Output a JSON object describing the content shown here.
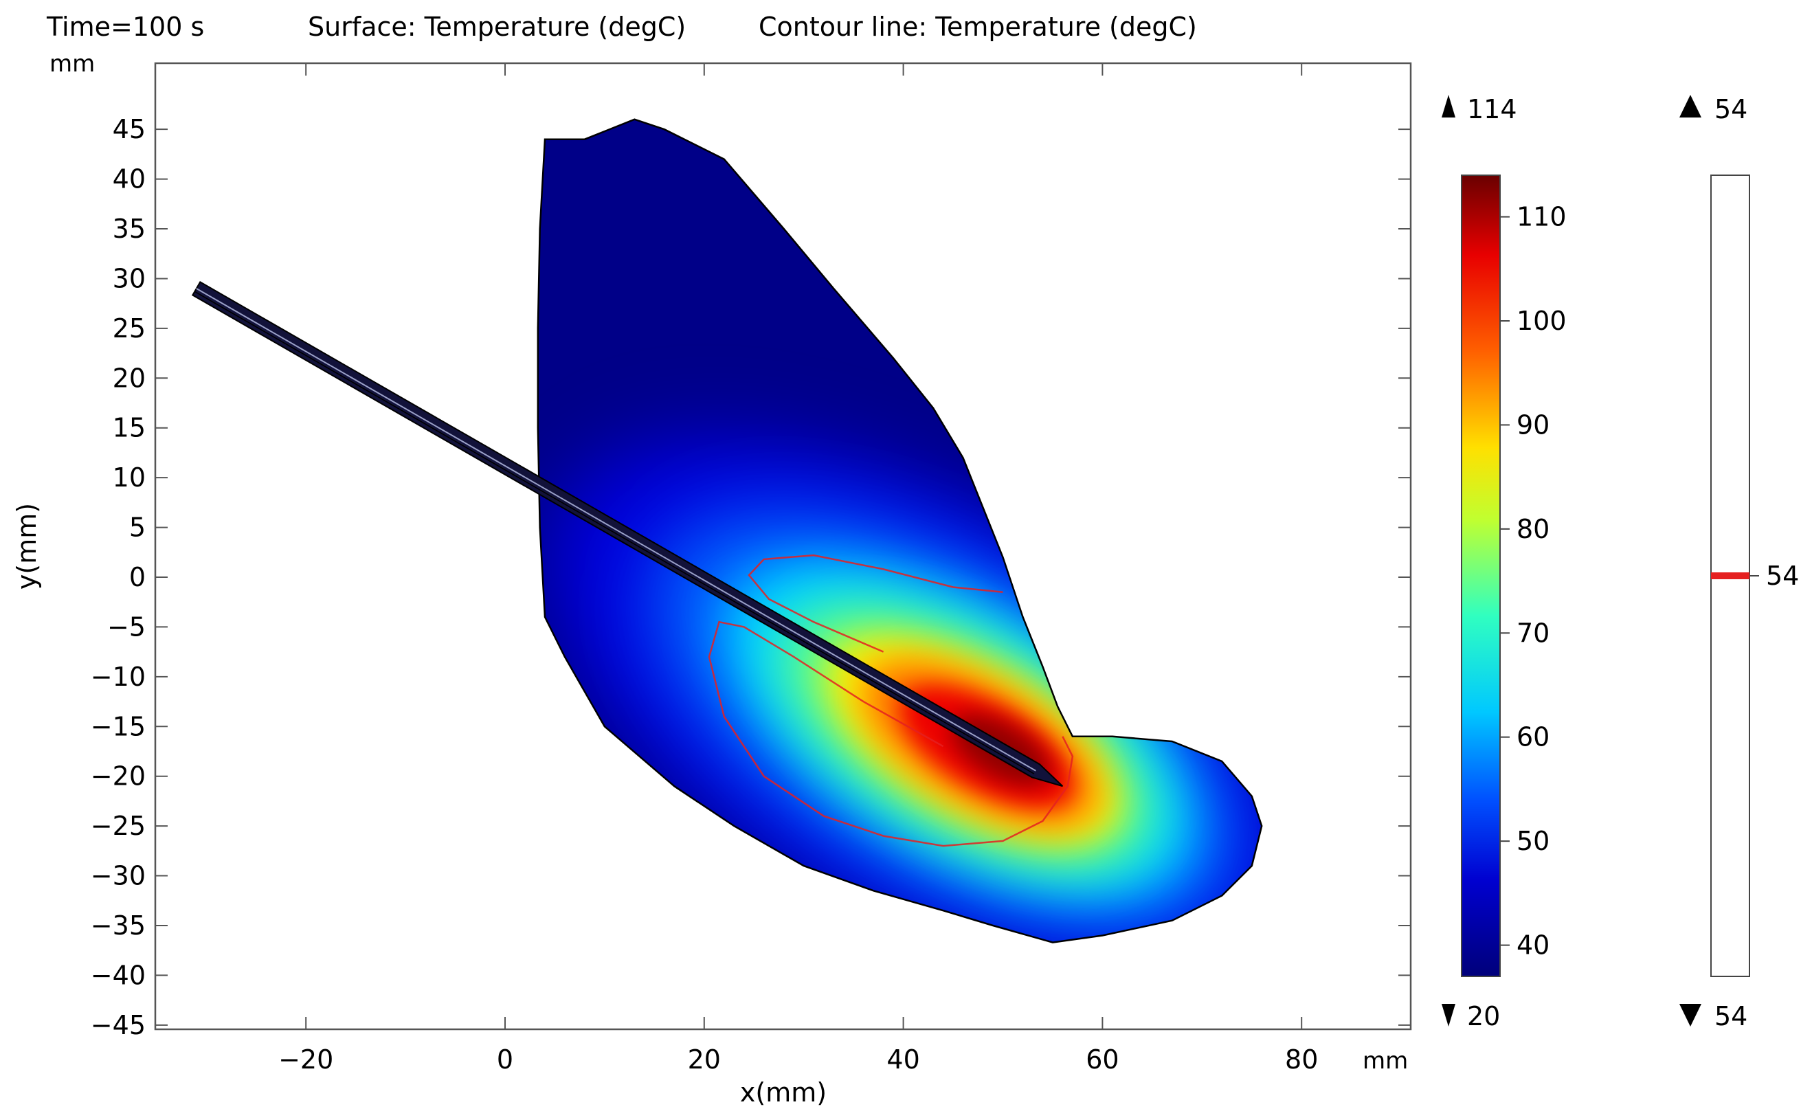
{
  "header": {
    "time": "Time=100 s",
    "surface": "Surface: Temperature (degC)",
    "contour": "Contour line: Temperature (degC)"
  },
  "chart_data": {
    "type": "heatmap",
    "title": "",
    "xlabel": "x(mm)",
    "ylabel": "y(mm)",
    "x_unit": "mm",
    "y_unit": "mm",
    "xlim": [
      -35,
      90
    ],
    "ylim": [
      -45,
      52
    ],
    "x_ticks": [
      -20,
      0,
      20,
      40,
      60,
      80
    ],
    "y_ticks": [
      45,
      40,
      35,
      30,
      25,
      20,
      15,
      10,
      5,
      0,
      -5,
      -10,
      -15,
      -20,
      -25,
      -30,
      -35,
      -40,
      -45
    ],
    "grid": false,
    "colormap": "rainbow (dark blue → blue → cyan → green → yellow → orange → red → dark red)",
    "surface_range": {
      "max_label": "114",
      "min_label": "20",
      "bar_min": 37,
      "bar_max": 114
    },
    "colorbar_ticks": [
      110,
      100,
      90,
      80,
      70,
      60,
      50,
      40
    ],
    "contour_range": {
      "max_label": "54",
      "min_label": "54"
    },
    "contour_levels": [
      54
    ],
    "contour_tick_label": "54",
    "contour_color": "#e52020",
    "peak_temperature_region": [
      47,
      -16
    ],
    "probe_axis": {
      "from": [
        -31,
        29
      ],
      "to": [
        56,
        -21
      ]
    }
  }
}
